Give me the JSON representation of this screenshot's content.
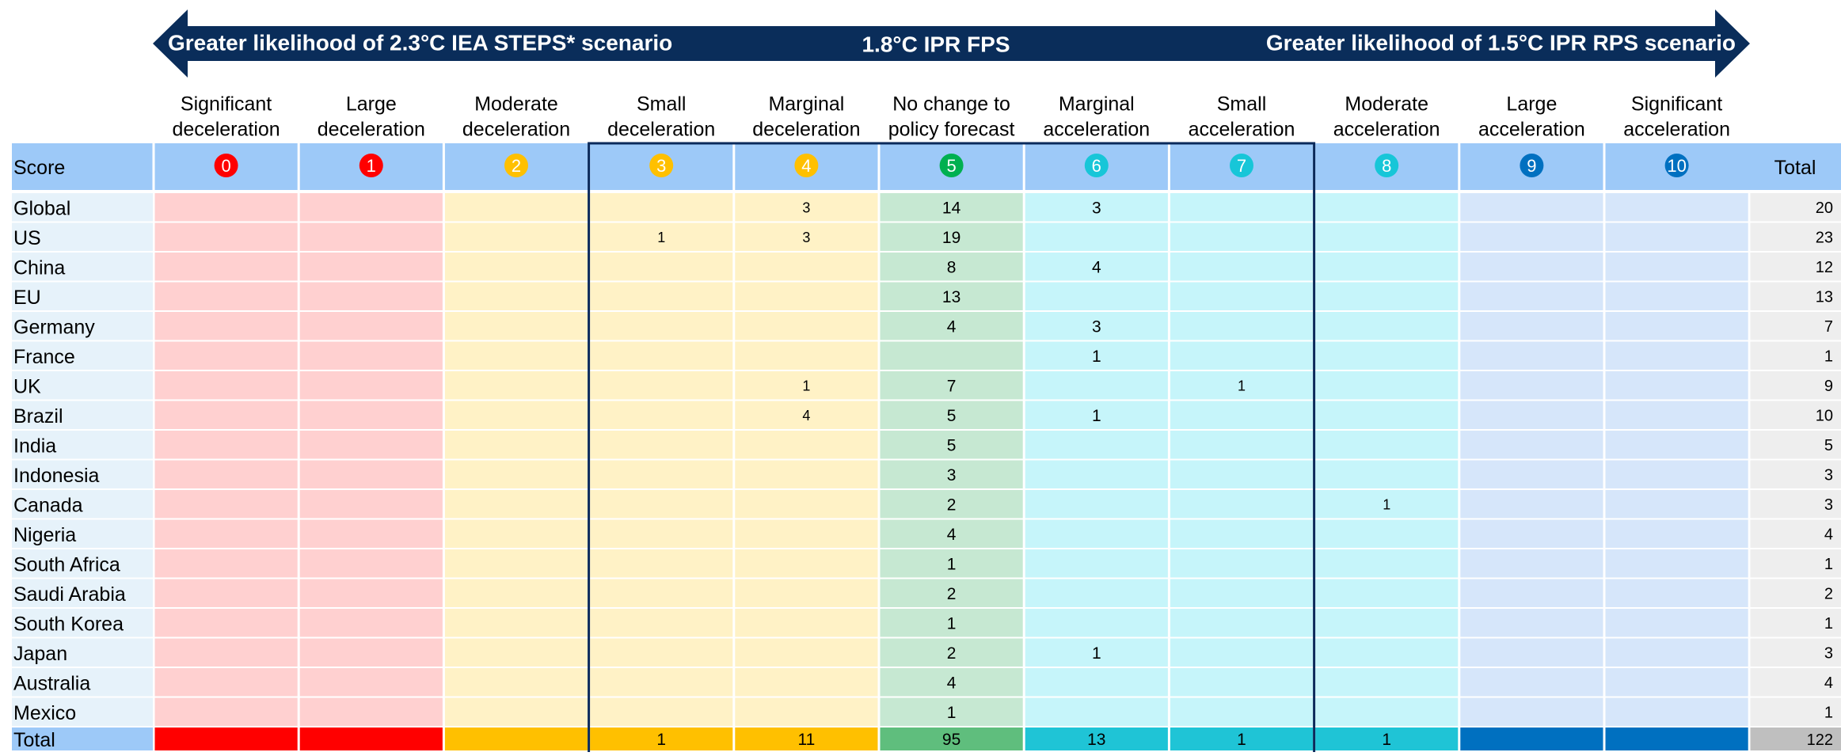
{
  "header": {
    "left": "Greater likelihood of 2.3°C IEA STEPS* scenario",
    "center": "1.8°C IPR FPS",
    "right": "Greater likelihood of 1.5°C IPR RPS scenario"
  },
  "table": {
    "score_label": "Score",
    "total_label": "Total",
    "columns": [
      {
        "lines": [
          "Significant",
          "deceleration"
        ],
        "score": 0
      },
      {
        "lines": [
          "Large",
          "deceleration"
        ],
        "score": 1
      },
      {
        "lines": [
          "Moderate",
          "deceleration"
        ],
        "score": 2
      },
      {
        "lines": [
          "Small",
          "deceleration"
        ],
        "score": 3
      },
      {
        "lines": [
          "Marginal",
          "deceleration"
        ],
        "score": 4
      },
      {
        "lines": [
          "No change to",
          "policy forecast"
        ],
        "score": 5
      },
      {
        "lines": [
          "Marginal",
          "acceleration"
        ],
        "score": 6
      },
      {
        "lines": [
          "Small",
          "acceleration"
        ],
        "score": 7
      },
      {
        "lines": [
          "Moderate",
          "acceleration"
        ],
        "score": 8
      },
      {
        "lines": [
          "Large",
          "acceleration"
        ],
        "score": 9
      },
      {
        "lines": [
          "Significant",
          "acceleration"
        ],
        "score": 10
      }
    ],
    "rows": [
      {
        "name": "Global",
        "values": [
          null,
          null,
          null,
          null,
          3,
          14,
          3,
          null,
          null,
          null,
          null
        ],
        "total": 20
      },
      {
        "name": "US",
        "values": [
          null,
          null,
          null,
          1,
          3,
          19,
          null,
          null,
          null,
          null,
          null
        ],
        "total": 23
      },
      {
        "name": "China",
        "values": [
          null,
          null,
          null,
          null,
          null,
          8,
          4,
          null,
          null,
          null,
          null
        ],
        "total": 12
      },
      {
        "name": "EU",
        "values": [
          null,
          null,
          null,
          null,
          null,
          13,
          null,
          null,
          null,
          null,
          null
        ],
        "total": 13
      },
      {
        "name": "Germany",
        "values": [
          null,
          null,
          null,
          null,
          null,
          4,
          3,
          null,
          null,
          null,
          null
        ],
        "total": 7
      },
      {
        "name": "France",
        "values": [
          null,
          null,
          null,
          null,
          null,
          null,
          1,
          null,
          null,
          null,
          null
        ],
        "total": 1
      },
      {
        "name": "UK",
        "values": [
          null,
          null,
          null,
          null,
          1,
          7,
          null,
          1,
          null,
          null,
          null
        ],
        "total": 9
      },
      {
        "name": "Brazil",
        "values": [
          null,
          null,
          null,
          null,
          4,
          5,
          1,
          null,
          null,
          null,
          null
        ],
        "total": 10
      },
      {
        "name": "India",
        "values": [
          null,
          null,
          null,
          null,
          null,
          5,
          null,
          null,
          null,
          null,
          null
        ],
        "total": 5
      },
      {
        "name": "Indonesia",
        "values": [
          null,
          null,
          null,
          null,
          null,
          3,
          null,
          null,
          null,
          null,
          null
        ],
        "total": 3
      },
      {
        "name": "Canada",
        "values": [
          null,
          null,
          null,
          null,
          null,
          2,
          null,
          null,
          1,
          null,
          null
        ],
        "total": 3
      },
      {
        "name": "Nigeria",
        "values": [
          null,
          null,
          null,
          null,
          null,
          4,
          null,
          null,
          null,
          null,
          null
        ],
        "total": 4
      },
      {
        "name": "South Africa",
        "values": [
          null,
          null,
          null,
          null,
          null,
          1,
          null,
          null,
          null,
          null,
          null
        ],
        "total": 1
      },
      {
        "name": "Saudi Arabia",
        "values": [
          null,
          null,
          null,
          null,
          null,
          2,
          null,
          null,
          null,
          null,
          null
        ],
        "total": 2
      },
      {
        "name": "South Korea",
        "values": [
          null,
          null,
          null,
          null,
          null,
          1,
          null,
          null,
          null,
          null,
          null
        ],
        "total": 1
      },
      {
        "name": "Japan",
        "values": [
          null,
          null,
          null,
          null,
          null,
          2,
          1,
          null,
          null,
          null,
          null
        ],
        "total": 3
      },
      {
        "name": "Australia",
        "values": [
          null,
          null,
          null,
          null,
          null,
          4,
          null,
          null,
          null,
          null,
          null
        ],
        "total": 4
      },
      {
        "name": "Mexico",
        "values": [
          null,
          null,
          null,
          null,
          null,
          1,
          null,
          null,
          null,
          null,
          null
        ],
        "total": 1
      }
    ],
    "total_row": {
      "name": "Total",
      "values": [
        null,
        null,
        null,
        1,
        11,
        95,
        13,
        1,
        1,
        null,
        null
      ],
      "total": 122
    }
  }
}
